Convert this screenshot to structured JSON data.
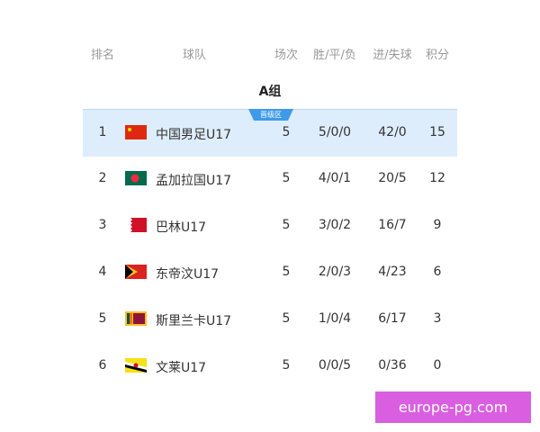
{
  "headers": {
    "rank": "排名",
    "team": "球队",
    "played": "场次",
    "wdl": "胜/平/负",
    "goals": "进/失球",
    "points": "积分"
  },
  "group": "A组",
  "badge": "晋级区",
  "rows": [
    {
      "rank": "1",
      "team": "中国男足U17",
      "flag": "china-flag",
      "played": "5",
      "wdl": "5/0/0",
      "goals": "42/0",
      "points": "15"
    },
    {
      "rank": "2",
      "team": "孟加拉国U17",
      "flag": "bangladesh-flag",
      "played": "5",
      "wdl": "4/0/1",
      "goals": "20/5",
      "points": "12"
    },
    {
      "rank": "3",
      "team": "巴林U17",
      "flag": "bahrain-flag",
      "played": "5",
      "wdl": "3/0/2",
      "goals": "16/7",
      "points": "9"
    },
    {
      "rank": "4",
      "team": "东帝汶U17",
      "flag": "timor-leste-flag",
      "played": "5",
      "wdl": "2/0/3",
      "goals": "4/23",
      "points": "6"
    },
    {
      "rank": "5",
      "team": "斯里兰卡U17",
      "flag": "sri-lanka-flag",
      "played": "5",
      "wdl": "1/0/4",
      "goals": "6/17",
      "points": "3"
    },
    {
      "rank": "6",
      "team": "文莱U17",
      "flag": "brunei-flag",
      "played": "5",
      "wdl": "0/0/5",
      "goals": "0/36",
      "points": "0"
    }
  ],
  "watermark": "europe-pg.com",
  "colors": {
    "highlight": "#deedfb",
    "badge": "#3d9be9",
    "watermark": "#d95fe0"
  }
}
